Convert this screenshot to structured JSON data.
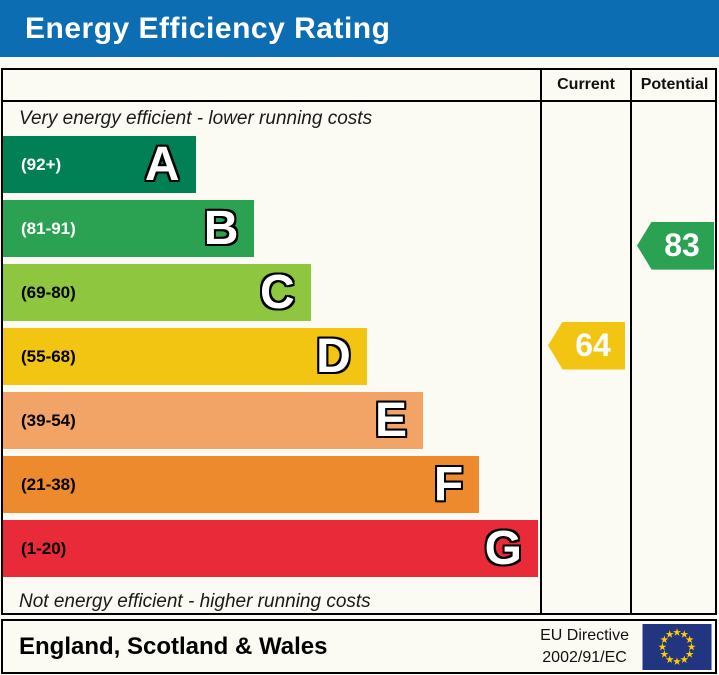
{
  "title": "Energy Efficiency Rating",
  "colors": {
    "title_bar": "#0c6db2",
    "background": "#fbfbf4",
    "border": "#000000",
    "flag_blue": "#213580",
    "flag_star": "#ffcc00"
  },
  "table": {
    "columns": [
      "",
      "Current",
      "Potential"
    ],
    "top_caption": "Very energy efficient - lower running costs",
    "bottom_caption": "Not energy efficient - higher running costs"
  },
  "chart_data": {
    "type": "bar",
    "title": "Energy Efficiency Rating",
    "bands": [
      {
        "letter": "A",
        "range": "(92+)",
        "min": 92,
        "max": 100,
        "color": "#008054",
        "width_pct": 36,
        "text_color": "#ffffff"
      },
      {
        "letter": "B",
        "range": "(81-91)",
        "min": 81,
        "max": 91,
        "color": "#2ba152",
        "width_pct": 47,
        "text_color": "#ffffff"
      },
      {
        "letter": "C",
        "range": "(69-80)",
        "min": 69,
        "max": 80,
        "color": "#8ec63f",
        "width_pct": 57.5,
        "text_color": "#000000"
      },
      {
        "letter": "D",
        "range": "(55-68)",
        "min": 55,
        "max": 68,
        "color": "#f3c513",
        "width_pct": 68,
        "text_color": "#000000"
      },
      {
        "letter": "E",
        "range": "(39-54)",
        "min": 39,
        "max": 54,
        "color": "#f1a465",
        "width_pct": 78.5,
        "text_color": "#000000"
      },
      {
        "letter": "F",
        "range": "(21-38)",
        "min": 21,
        "max": 38,
        "color": "#ed8a2e",
        "width_pct": 89,
        "text_color": "#000000"
      },
      {
        "letter": "G",
        "range": "(1-20)",
        "min": 1,
        "max": 20,
        "color": "#e82a39",
        "width_pct": 100,
        "text_color": "#000000"
      }
    ],
    "current": {
      "value": 64,
      "band": "D",
      "color": "#f3c513"
    },
    "potential": {
      "value": 83,
      "band": "B",
      "color": "#2ba152"
    }
  },
  "footer": {
    "region": "England, Scotland & Wales",
    "directive_line1": "EU Directive",
    "directive_line2": "2002/91/EC"
  }
}
